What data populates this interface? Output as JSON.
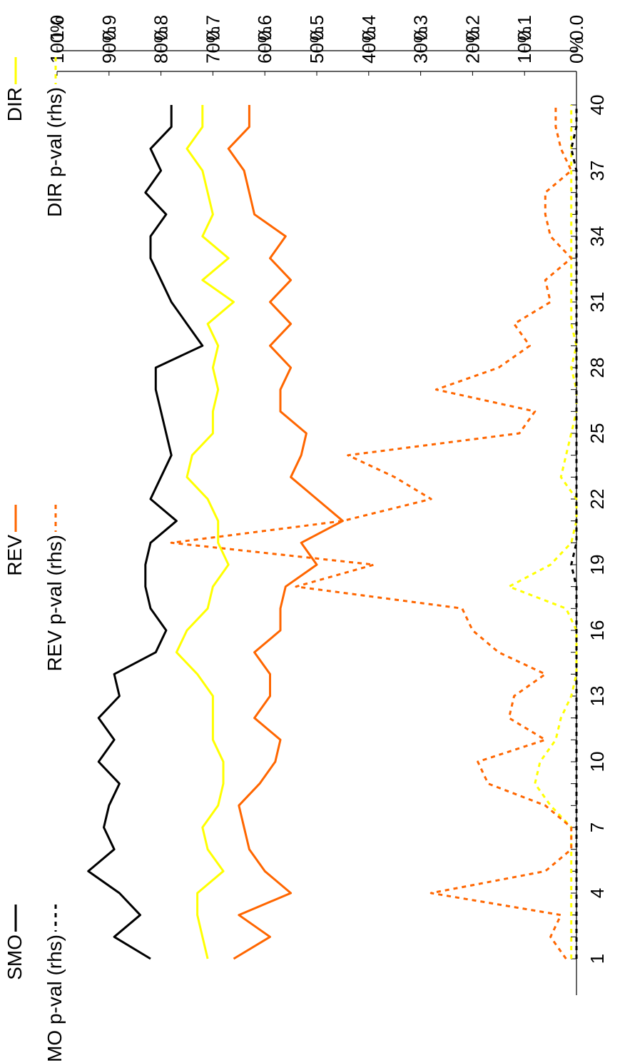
{
  "chart_data": {
    "type": "line",
    "orientation": "rotated-90-ccw",
    "x": [
      1,
      2,
      3,
      4,
      5,
      6,
      7,
      8,
      9,
      10,
      11,
      12,
      13,
      14,
      15,
      16,
      17,
      18,
      19,
      20,
      21,
      22,
      23,
      24,
      25,
      26,
      27,
      28,
      29,
      30,
      31,
      32,
      33,
      34,
      35,
      36,
      37,
      38,
      39,
      40
    ],
    "x_tick_labels": [
      "1",
      "4",
      "7",
      "10",
      "13",
      "16",
      "19",
      "22",
      "25",
      "28",
      "31",
      "34",
      "37",
      "40"
    ],
    "left_axis": {
      "ticks": [
        "0%",
        "10%",
        "20%",
        "30%",
        "40%",
        "50%",
        "60%",
        "70%",
        "80%",
        "90%",
        "100%"
      ],
      "ylim": [
        0,
        1
      ]
    },
    "right_axis": {
      "ticks": [
        "0.0",
        "0.1",
        "0.2",
        "0.3",
        "0.4",
        "0.5",
        "0.6",
        "0.7",
        "0.8",
        "0.9",
        "1.0"
      ],
      "ylim": [
        0,
        1
      ]
    },
    "legend_placement": "top",
    "series": [
      {
        "name": "DIR",
        "color": "#FFFF00",
        "style": "solid",
        "axis": "left",
        "values": [
          0.71,
          0.72,
          0.73,
          0.73,
          0.68,
          0.71,
          0.72,
          0.69,
          0.68,
          0.68,
          0.7,
          0.7,
          0.7,
          0.73,
          0.77,
          0.75,
          0.71,
          0.7,
          0.67,
          0.69,
          0.69,
          0.71,
          0.75,
          0.74,
          0.7,
          0.7,
          0.69,
          0.7,
          0.69,
          0.71,
          0.66,
          0.72,
          0.67,
          0.72,
          0.7,
          0.71,
          0.72,
          0.75,
          0.72,
          0.72
        ]
      },
      {
        "name": "REV",
        "color": "#FF6600",
        "style": "solid",
        "axis": "left",
        "values": [
          0.66,
          0.59,
          0.65,
          0.55,
          0.6,
          0.63,
          0.64,
          0.65,
          0.61,
          0.58,
          0.57,
          0.62,
          0.59,
          0.59,
          0.62,
          0.57,
          0.57,
          0.56,
          0.5,
          0.53,
          0.45,
          0.5,
          0.55,
          0.53,
          0.52,
          0.57,
          0.57,
          0.55,
          0.59,
          0.55,
          0.59,
          0.55,
          0.59,
          0.56,
          0.62,
          0.63,
          0.64,
          0.67,
          0.63,
          0.63
        ]
      },
      {
        "name": "SMO",
        "color": "#000000",
        "style": "solid",
        "axis": "left",
        "values": [
          0.82,
          0.89,
          0.84,
          0.88,
          0.94,
          0.89,
          0.91,
          0.9,
          0.88,
          0.92,
          0.89,
          0.92,
          0.88,
          0.89,
          0.81,
          0.79,
          0.82,
          0.83,
          0.83,
          0.82,
          0.77,
          0.82,
          0.8,
          0.78,
          0.79,
          0.8,
          0.81,
          0.81,
          0.72,
          0.75,
          0.78,
          0.8,
          0.82,
          0.82,
          0.79,
          0.83,
          0.8,
          0.82,
          0.78,
          0.78
        ]
      },
      {
        "name": "DIR p-val (rhs)",
        "color": "#FFFF00",
        "style": "dotted",
        "axis": "right",
        "values": [
          0.01,
          0.01,
          0.01,
          0.01,
          0.01,
          0.01,
          0.01,
          0.05,
          0.08,
          0.07,
          0.04,
          0.03,
          0.01,
          0.0,
          0.0,
          0.0,
          0.02,
          0.13,
          0.05,
          0.01,
          0.0,
          0.0,
          0.03,
          0.02,
          0.01,
          0.0,
          0.0,
          0.01,
          0.0,
          0.01,
          0.01,
          0.01,
          0.01,
          0.01,
          0.01,
          0.01,
          0.01,
          0.01,
          0.01,
          0.01
        ]
      },
      {
        "name": "REV p-val (rhs)",
        "color": "#FF6600",
        "style": "dotted",
        "axis": "right",
        "values": [
          0.02,
          0.05,
          0.03,
          0.28,
          0.06,
          0.01,
          0.01,
          0.06,
          0.17,
          0.19,
          0.06,
          0.13,
          0.12,
          0.06,
          0.15,
          0.2,
          0.22,
          0.54,
          0.39,
          0.78,
          0.45,
          0.28,
          0.35,
          0.44,
          0.11,
          0.08,
          0.27,
          0.15,
          0.09,
          0.12,
          0.05,
          0.06,
          0.01,
          0.05,
          0.06,
          0.06,
          0.01,
          0.03,
          0.04,
          0.04
        ]
      },
      {
        "name": "SMO p-val (rhs)",
        "color": "#000000",
        "style": "dotted",
        "axis": "right",
        "values": [
          0.0,
          0.0,
          0.0,
          0.0,
          0.0,
          0.0,
          0.0,
          0.0,
          0.0,
          0.0,
          0.0,
          0.0,
          0.0,
          0.0,
          0.0,
          0.0,
          0.0,
          0.0,
          0.01,
          0.0,
          0.0,
          0.0,
          0.0,
          0.0,
          0.0,
          0.0,
          0.0,
          0.0,
          0.0,
          0.0,
          0.0,
          0.0,
          0.0,
          0.0,
          0.0,
          0.0,
          0.0,
          0.01,
          0.0,
          0.0
        ]
      }
    ]
  }
}
